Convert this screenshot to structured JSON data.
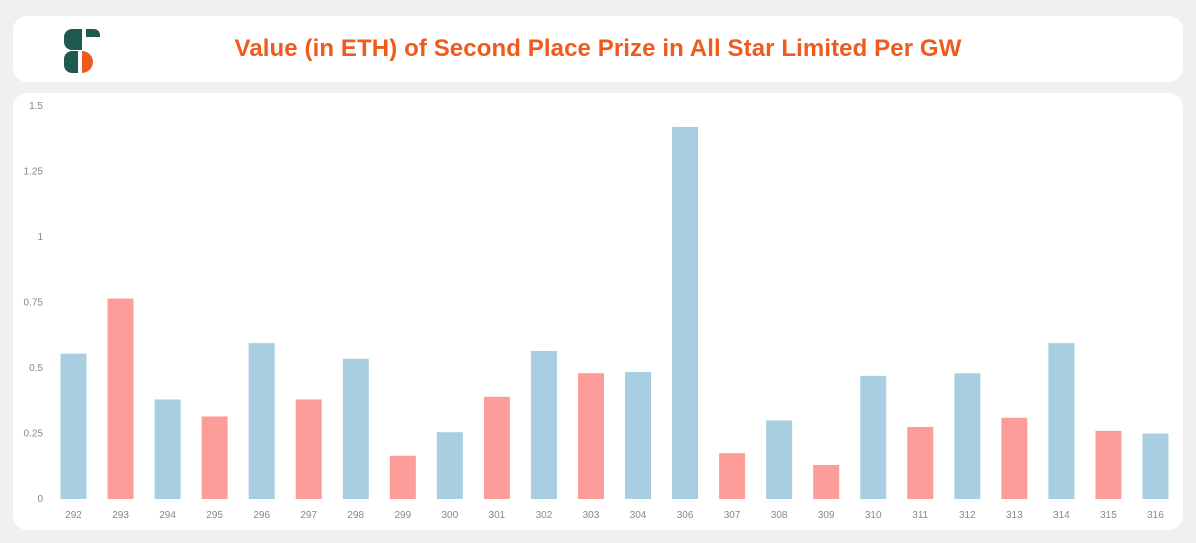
{
  "header": {
    "title": "Value (in ETH) of Second Place Prize in All Star Limited Per GW",
    "logo_icon": "brand-logo-icon"
  },
  "colors": {
    "title": "#f05a1a",
    "blue": "#a8cfe1",
    "red": "#fc9d9a",
    "logo_green": "#1f5a4f",
    "logo_orange": "#f05a1a"
  },
  "chart_data": {
    "type": "bar",
    "title": "Value (in ETH) of Second Place Prize in All Star Limited Per GW",
    "xlabel": "",
    "ylabel": "",
    "categories": [
      "292",
      "293",
      "294",
      "295",
      "296",
      "297",
      "298",
      "299",
      "300",
      "301",
      "302",
      "303",
      "304",
      "306",
      "307",
      "308",
      "309",
      "310",
      "311",
      "312",
      "313",
      "314",
      "315",
      "316"
    ],
    "values": [
      0.555,
      0.765,
      0.38,
      0.315,
      0.595,
      0.38,
      0.535,
      0.165,
      0.255,
      0.39,
      0.565,
      0.48,
      0.485,
      1.42,
      0.175,
      0.3,
      0.13,
      0.47,
      0.275,
      0.48,
      0.31,
      0.595,
      0.26,
      0.25
    ],
    "bar_colors": [
      "blue",
      "red",
      "blue",
      "red",
      "blue",
      "red",
      "blue",
      "red",
      "blue",
      "red",
      "blue",
      "red",
      "blue",
      "blue",
      "red",
      "blue",
      "red",
      "blue",
      "red",
      "blue",
      "red",
      "blue",
      "red",
      "blue"
    ],
    "ylim": [
      0,
      1.5
    ],
    "yticks": [
      "0",
      "0.25",
      "0.5",
      "0.75",
      "1",
      "1.25",
      "1.5"
    ],
    "ytick_values": [
      0,
      0.25,
      0.5,
      0.75,
      1,
      1.25,
      1.5
    ],
    "grid": false,
    "legend": "none"
  }
}
